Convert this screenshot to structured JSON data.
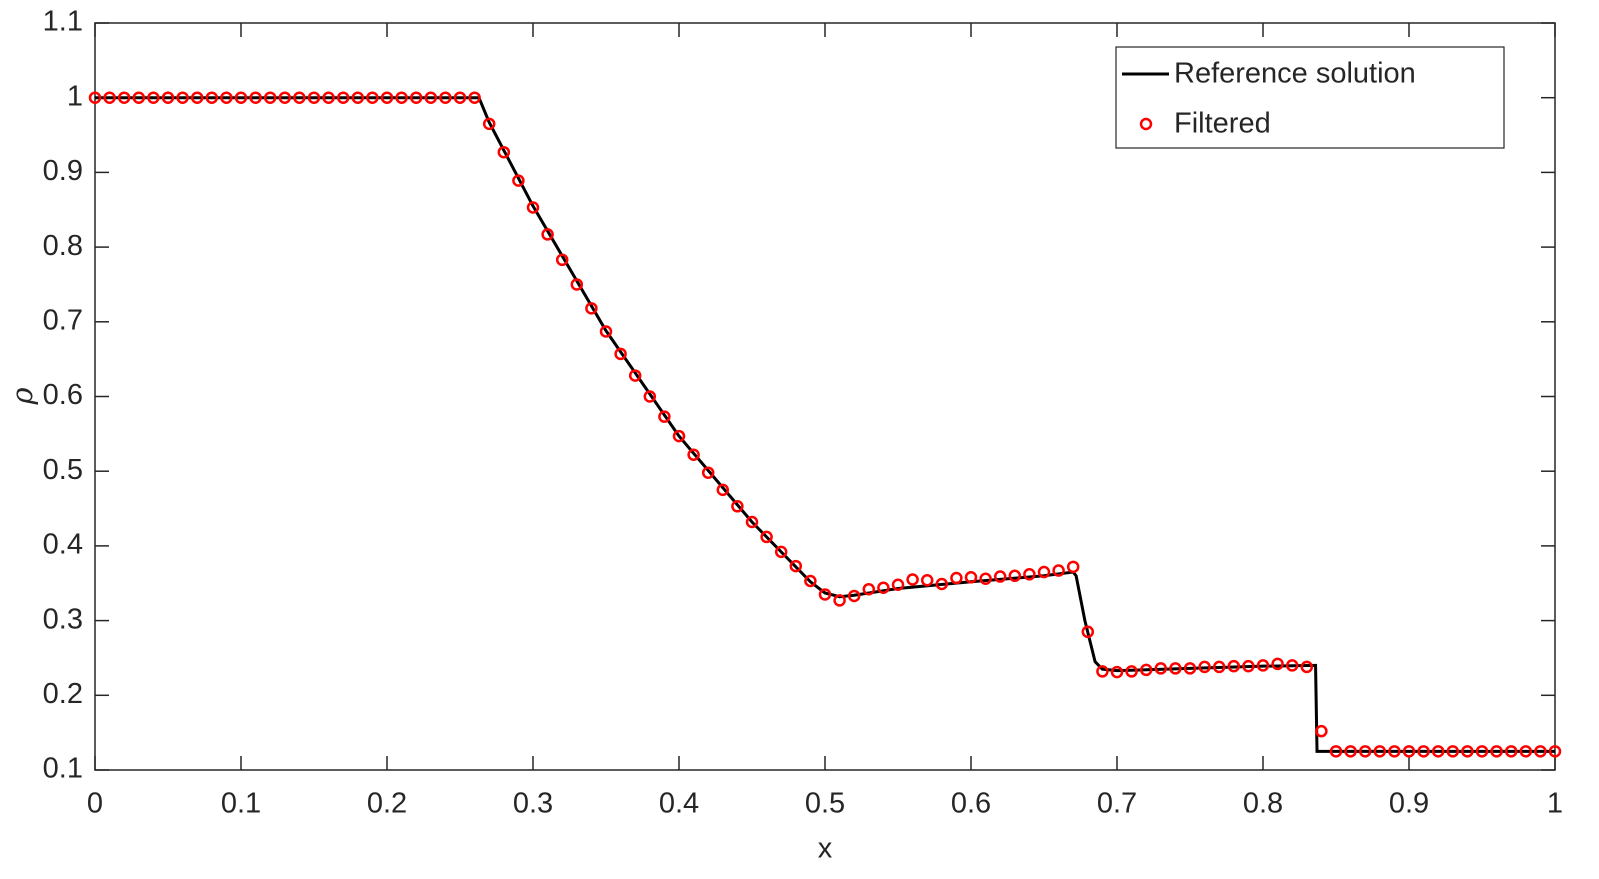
{
  "chart_data": {
    "type": "line",
    "xlabel": "x",
    "ylabel": "ρ",
    "xlim": [
      0,
      1
    ],
    "xticks": [
      0,
      0.1,
      0.2,
      0.3,
      0.4,
      0.5,
      0.6,
      0.7,
      0.8,
      0.9,
      1
    ],
    "ylim": [
      0.1,
      1.1
    ],
    "yticks": [
      0.1,
      0.2,
      0.3,
      0.4,
      0.5,
      0.6,
      0.7,
      0.8,
      0.9,
      1,
      1.1
    ],
    "grid": false,
    "legend": "top-right",
    "series": [
      {
        "name": "Reference solution",
        "color": "#000000",
        "mode": "line",
        "x": [
          0,
          0.263,
          0.27,
          0.3,
          0.35,
          0.4,
          0.45,
          0.49,
          0.5,
          0.51,
          0.52,
          0.55,
          0.6,
          0.65,
          0.67,
          0.672,
          0.678,
          0.685,
          0.69,
          0.7,
          0.75,
          0.8,
          0.836,
          0.837,
          1
        ],
        "values": [
          1,
          1,
          0.967,
          0.855,
          0.688,
          0.547,
          0.432,
          0.352,
          0.337,
          0.332,
          0.334,
          0.343,
          0.352,
          0.36,
          0.365,
          0.36,
          0.3,
          0.245,
          0.235,
          0.233,
          0.236,
          0.239,
          0.24,
          0.125,
          0.125
        ]
      },
      {
        "name": "Filtered",
        "color": "#ff0000",
        "mode": "markers",
        "x": [
          0,
          0.01,
          0.02,
          0.03,
          0.04,
          0.05,
          0.06,
          0.07,
          0.08,
          0.09,
          0.1,
          0.11,
          0.12,
          0.13,
          0.14,
          0.15,
          0.16,
          0.17,
          0.18,
          0.19,
          0.2,
          0.21,
          0.22,
          0.23,
          0.24,
          0.25,
          0.26,
          0.27,
          0.28,
          0.29,
          0.3,
          0.31,
          0.32,
          0.33,
          0.34,
          0.35,
          0.36,
          0.37,
          0.38,
          0.39,
          0.4,
          0.41,
          0.42,
          0.43,
          0.44,
          0.45,
          0.46,
          0.47,
          0.48,
          0.49,
          0.5,
          0.51,
          0.52,
          0.53,
          0.54,
          0.55,
          0.56,
          0.57,
          0.58,
          0.59,
          0.6,
          0.61,
          0.62,
          0.63,
          0.64,
          0.65,
          0.66,
          0.67,
          0.68,
          0.69,
          0.7,
          0.71,
          0.72,
          0.73,
          0.74,
          0.75,
          0.76,
          0.77,
          0.78,
          0.79,
          0.8,
          0.81,
          0.82,
          0.83,
          0.84,
          0.85,
          0.86,
          0.87,
          0.88,
          0.89,
          0.9,
          0.91,
          0.92,
          0.93,
          0.94,
          0.95,
          0.96,
          0.97,
          0.98,
          0.99,
          1
        ],
        "values": [
          1,
          1,
          1,
          1,
          1,
          1,
          1,
          1,
          1,
          1,
          1,
          1,
          1,
          1,
          1,
          1,
          1,
          1,
          1,
          1,
          1,
          1,
          1,
          1,
          1,
          1,
          1,
          0.965,
          0.927,
          0.889,
          0.853,
          0.817,
          0.783,
          0.75,
          0.718,
          0.687,
          0.657,
          0.628,
          0.6,
          0.573,
          0.547,
          0.522,
          0.498,
          0.475,
          0.453,
          0.432,
          0.412,
          0.392,
          0.373,
          0.353,
          0.335,
          0.327,
          0.333,
          0.342,
          0.344,
          0.348,
          0.355,
          0.354,
          0.349,
          0.357,
          0.358,
          0.356,
          0.359,
          0.36,
          0.362,
          0.365,
          0.367,
          0.372,
          0.285,
          0.232,
          0.231,
          0.232,
          0.234,
          0.236,
          0.236,
          0.236,
          0.238,
          0.238,
          0.239,
          0.239,
          0.24,
          0.242,
          0.24,
          0.238,
          0.152,
          0.125,
          0.125,
          0.125,
          0.125,
          0.125,
          0.125,
          0.125,
          0.125,
          0.125,
          0.125,
          0.125,
          0.125,
          0.125,
          0.125,
          0.125,
          0.125
        ]
      }
    ]
  }
}
